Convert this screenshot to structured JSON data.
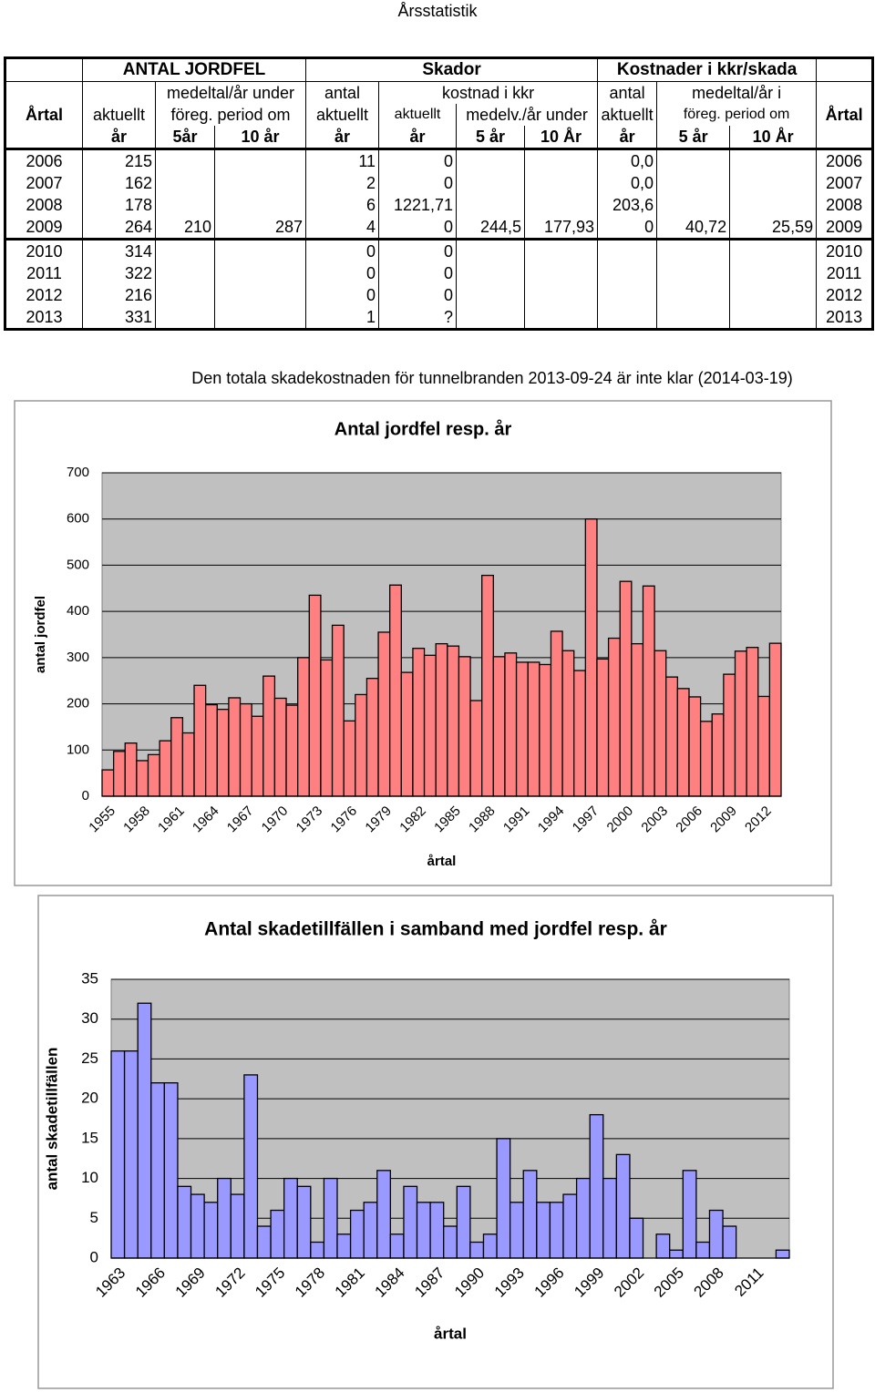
{
  "header": {
    "title": "Årsstatistik"
  },
  "table": {
    "header_rows": [
      [
        null,
        "ANTAL JORDFEL",
        "Skador",
        "Kostnader i kkr/skada",
        null
      ],
      [
        null,
        null,
        "medeltal/år under",
        "antal",
        "kostnad i kkr",
        "antal",
        "medeltal/år i",
        null
      ],
      [
        "Årtal",
        "aktuellt",
        "föreg. period om",
        "aktuellt",
        "aktuellt",
        "medelv./år under",
        "aktuellt",
        "föreg. period om",
        "Årtal"
      ],
      [
        null,
        "år",
        "5år",
        "10 år",
        "år",
        "år",
        "5 år",
        "10 År",
        "år",
        "5 år",
        "10 År",
        null
      ]
    ],
    "rows": [
      [
        "2006",
        "215",
        null,
        null,
        "11",
        "0",
        null,
        null,
        "0,0",
        null,
        null,
        "2006"
      ],
      [
        "2007",
        "162",
        null,
        null,
        "2",
        "0",
        null,
        null,
        "0,0",
        null,
        null,
        "2007"
      ],
      [
        "2008",
        "178",
        null,
        null,
        "6",
        "1221,71",
        null,
        null,
        "203,6",
        null,
        null,
        "2008"
      ],
      [
        "2009",
        "264",
        "210",
        "287",
        "4",
        "0",
        "244,5",
        "177,93",
        "0",
        "40,72",
        "25,59",
        "2009"
      ],
      [
        "2010",
        "314",
        null,
        null,
        "0",
        "0",
        null,
        null,
        null,
        null,
        null,
        "2010"
      ],
      [
        "2011",
        "322",
        null,
        null,
        "0",
        "0",
        null,
        null,
        null,
        null,
        null,
        "2011"
      ],
      [
        "2012",
        "216",
        null,
        null,
        "0",
        "0",
        null,
        null,
        null,
        null,
        null,
        "2012"
      ],
      [
        "2013",
        "331",
        null,
        null,
        "1",
        "?",
        null,
        null,
        null,
        null,
        null,
        "2013"
      ]
    ]
  },
  "note": "Den totala skadekostnaden för tunnelbranden 2013-09-24 är inte klar (2014-03-19)",
  "chart_data": [
    {
      "type": "bar",
      "title": "Antal jordfel resp. år",
      "y_label": "antal jordfel",
      "x_label": "årtal",
      "categories": [
        "1955",
        null,
        null,
        "1958",
        null,
        null,
        "1961",
        null,
        null,
        "1964",
        null,
        null,
        "1967",
        null,
        null,
        "1970",
        null,
        null,
        "1973",
        null,
        null,
        "1976",
        null,
        null,
        "1979",
        null,
        null,
        "1982",
        null,
        null,
        "1985",
        null,
        null,
        "1988",
        null,
        null,
        "1991",
        null,
        null,
        "1994",
        null,
        null,
        "1997",
        null,
        null,
        "2000",
        null,
        null,
        "2003",
        null,
        null,
        "2006",
        null,
        null,
        "2009",
        null,
        null,
        "2012",
        null
      ],
      "values": [
        57,
        97,
        115,
        77,
        90,
        120,
        170,
        137,
        240,
        198,
        188,
        213,
        200,
        173,
        260,
        212,
        197,
        300,
        435,
        295,
        370,
        163,
        220,
        255,
        355,
        457,
        268,
        320,
        305,
        330,
        325,
        302,
        207,
        478,
        302,
        310,
        290,
        290,
        285,
        357,
        315,
        272,
        600,
        297,
        342,
        465,
        330,
        455,
        315,
        258,
        233,
        215,
        162,
        178,
        264,
        314,
        322,
        216,
        331
      ],
      "color": "#ff8080",
      "ylim": [
        0,
        700
      ],
      "yticks": [
        0,
        100,
        200,
        300,
        400,
        500,
        600,
        700
      ],
      "grid": true
    },
    {
      "type": "bar",
      "title": "Antal skadetillfällen i samband med jordfel resp. år",
      "y_label": "antal skadetillfällen",
      "x_label": "årtal",
      "categories": [
        "1963",
        null,
        null,
        "1966",
        null,
        null,
        "1969",
        null,
        null,
        "1972",
        null,
        null,
        "1975",
        null,
        null,
        "1978",
        null,
        null,
        "1981",
        null,
        null,
        "1984",
        null,
        null,
        "1987",
        null,
        null,
        "1990",
        null,
        null,
        "1993",
        null,
        null,
        "1996",
        null,
        null,
        "1999",
        null,
        null,
        "2002",
        null,
        null,
        "2005",
        null,
        null,
        "2008",
        null,
        null,
        "2011",
        null,
        null
      ],
      "values": [
        26,
        26,
        32,
        22,
        22,
        9,
        8,
        7,
        10,
        8,
        23,
        4,
        6,
        10,
        9,
        2,
        10,
        3,
        6,
        7,
        11,
        3,
        9,
        7,
        7,
        4,
        9,
        2,
        3,
        15,
        7,
        11,
        7,
        7,
        8,
        10,
        18,
        10,
        13,
        5,
        0,
        3,
        1,
        11,
        2,
        6,
        4,
        0,
        0,
        0,
        1
      ],
      "color": "#9999ff",
      "ylim": [
        0,
        35
      ],
      "yticks": [
        0,
        5,
        10,
        15,
        20,
        25,
        30,
        35
      ],
      "grid": true
    }
  ]
}
